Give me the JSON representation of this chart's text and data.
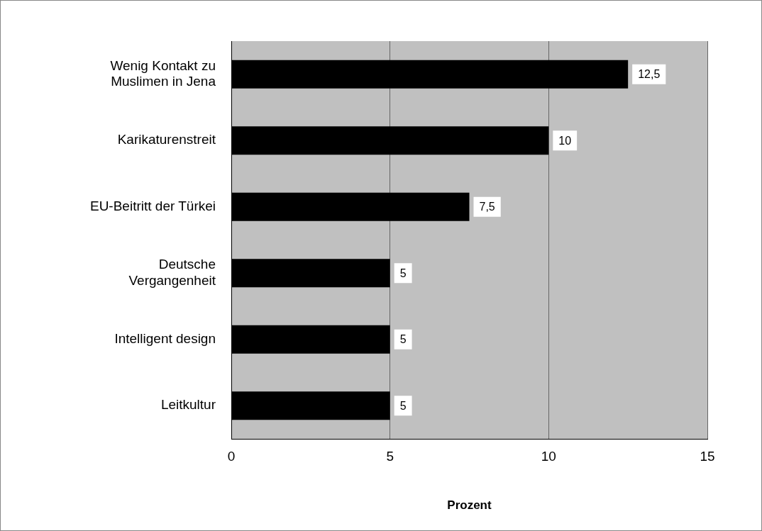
{
  "chart_data": {
    "type": "bar",
    "orientation": "horizontal",
    "xlabel": "Prozent",
    "categories": [
      "Wenig Kontakt zu Muslimen in Jena",
      "Karikaturenstreit",
      "EU-Beitritt der Türkei",
      "Deutsche Vergangenheit",
      "Intelligent design",
      "Leitkultur"
    ],
    "values": [
      12.5,
      10,
      7.5,
      5,
      5,
      5
    ],
    "value_labels": [
      "12,5",
      "10",
      "7,5",
      "5",
      "5",
      "5"
    ],
    "color": "#000000",
    "xlim": [
      0,
      15
    ],
    "xticks": [
      0,
      5,
      10,
      15
    ],
    "grid": "x",
    "legend": false
  }
}
